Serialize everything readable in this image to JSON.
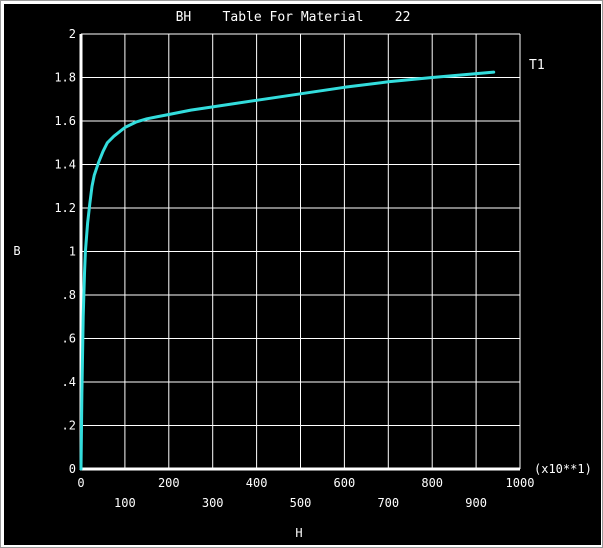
{
  "chart_data": {
    "type": "line",
    "title": "BH    Table For Material    22",
    "xlabel": "H",
    "ylabel": "B",
    "x_multiplier_label": "(x10**1)",
    "xlim": [
      0,
      1000
    ],
    "ylim": [
      0,
      2
    ],
    "x_ticks_upper": [
      "0",
      "200",
      "400",
      "600",
      "800",
      "1000"
    ],
    "x_ticks_lower": [
      "100",
      "300",
      "500",
      "700",
      "900"
    ],
    "y_ticks": [
      "0",
      ".2",
      ".4",
      ".6",
      ".8",
      "1",
      "1.2",
      "1.4",
      "1.6",
      "1.8",
      "2"
    ],
    "grid": true,
    "legend_position": "top-right",
    "series": [
      {
        "name": "T1",
        "color": "#33dddd",
        "x": [
          0,
          2,
          5,
          8,
          10,
          15,
          20,
          25,
          30,
          40,
          50,
          60,
          75,
          100,
          125,
          150,
          175,
          200,
          250,
          300,
          400,
          500,
          600,
          700,
          800,
          940
        ],
        "y": [
          0,
          0.35,
          0.7,
          0.9,
          1.0,
          1.13,
          1.22,
          1.3,
          1.35,
          1.41,
          1.46,
          1.5,
          1.53,
          1.57,
          1.595,
          1.61,
          1.62,
          1.63,
          1.65,
          1.665,
          1.695,
          1.725,
          1.755,
          1.78,
          1.8,
          1.825
        ]
      }
    ],
    "colors": {
      "background": "#000000",
      "axes": "#ffffff",
      "grid": "#ffffff",
      "text": "#ffffff"
    }
  }
}
